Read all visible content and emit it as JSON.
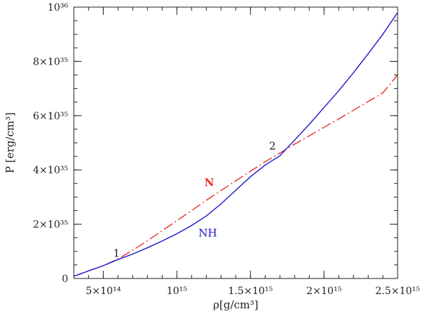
{
  "chart_data": {
    "type": "line",
    "xlabel": "ρ[g/cm³]",
    "ylabel": "P [erg/cm³]",
    "xlim": [
      300000000000000.0,
      2500000000000000.0
    ],
    "ylim": [
      0,
      1e+36
    ],
    "grid": false,
    "x_ticks": [
      {
        "value": 500000000000000.0,
        "label": "5×10¹⁴"
      },
      {
        "value": 1000000000000000.0,
        "label": "10¹⁵"
      },
      {
        "value": 1500000000000000.0,
        "label": "1.5×10¹⁵"
      },
      {
        "value": 2000000000000000.0,
        "label": "2×10¹⁵"
      },
      {
        "value": 2500000000000000.0,
        "label": "2.5×10¹⁵"
      }
    ],
    "y_ticks": [
      {
        "value": 0,
        "label": "0"
      },
      {
        "value": 2e+35,
        "label": "2×10³⁵"
      },
      {
        "value": 4e+35,
        "label": "4×10³⁵"
      },
      {
        "value": 6e+35,
        "label": "6×10³⁵"
      },
      {
        "value": 8e+35,
        "label": "8×10³⁵"
      },
      {
        "value": 1e+36,
        "label": "10³⁶"
      }
    ],
    "x_minor_step": 100000000000000.0,
    "y_minor_step": 5e+34,
    "series": [
      {
        "name": "N",
        "color": "#e8302a",
        "style": "dashed",
        "x": [
          300000000000000.0,
          400000000000000.0,
          500000000000000.0,
          600000000000000.0,
          700000000000000.0,
          800000000000000.0,
          900000000000000.0,
          1000000000000000.0,
          1100000000000000.0,
          1200000000000000.0,
          1300000000000000.0,
          1400000000000000.0,
          1500000000000000.0,
          1600000000000000.0,
          1700000000000000.0,
          1800000000000000.0,
          1900000000000000.0,
          2000000000000000.0,
          2100000000000000.0,
          2200000000000000.0,
          2300000000000000.0,
          2400000000000000.0,
          2500000000000000.0
        ],
        "y": [
          8e+33,
          2.8e+34,
          4.7e+34,
          7.2e+34,
          1.04e+35,
          1.39e+35,
          1.76e+35,
          2.13e+35,
          2.5e+35,
          2.88e+35,
          3.24e+35,
          3.6e+35,
          3.95e+35,
          4.3e+35,
          4.62e+35,
          4.95e+35,
          5.26e+35,
          5.57e+35,
          5.88e+35,
          6.2e+35,
          6.52e+35,
          6.84e+35,
          7.5e+35
        ]
      },
      {
        "name": "NH",
        "color": "#1a1acc",
        "style": "solid",
        "x": [
          300000000000000.0,
          400000000000000.0,
          500000000000000.0,
          600000000000000.0,
          700000000000000.0,
          800000000000000.0,
          900000000000000.0,
          1000000000000000.0,
          1100000000000000.0,
          1200000000000000.0,
          1300000000000000.0,
          1400000000000000.0,
          1500000000000000.0,
          1600000000000000.0,
          1700000000000000.0,
          1800000000000000.0,
          1900000000000000.0,
          2000000000000000.0,
          2100000000000000.0,
          2200000000000000.0,
          2300000000000000.0,
          2400000000000000.0,
          2500000000000000.0
        ],
        "y": [
          8e+33,
          2.8e+34,
          4.7e+34,
          7e+34,
          9e+34,
          1.13e+35,
          1.38e+35,
          1.65e+35,
          1.95e+35,
          2.3e+35,
          2.75e+35,
          3.25e+35,
          3.75e+35,
          4.18e+35,
          4.52e+35,
          5.1e+35,
          5.68e+35,
          6.3e+35,
          6.92e+35,
          7.58e+35,
          8.28e+35,
          9e+35,
          9.8e+35
        ]
      }
    ],
    "annotations": [
      {
        "text": "N",
        "x": 1220000000000000.0,
        "y": 3.4e+35,
        "color": "#e8302a",
        "bold": true
      },
      {
        "text": "NH",
        "x": 1210000000000000.0,
        "y": 1.55e+35,
        "color": "#1a1acc",
        "bold": false
      },
      {
        "text": "1",
        "x": 590000000000000.0,
        "y": 8e+34,
        "color": "#222222",
        "bold": false
      },
      {
        "text": "2",
        "x": 1650000000000000.0,
        "y": 4.75e+35,
        "color": "#222222",
        "bold": false
      }
    ]
  }
}
